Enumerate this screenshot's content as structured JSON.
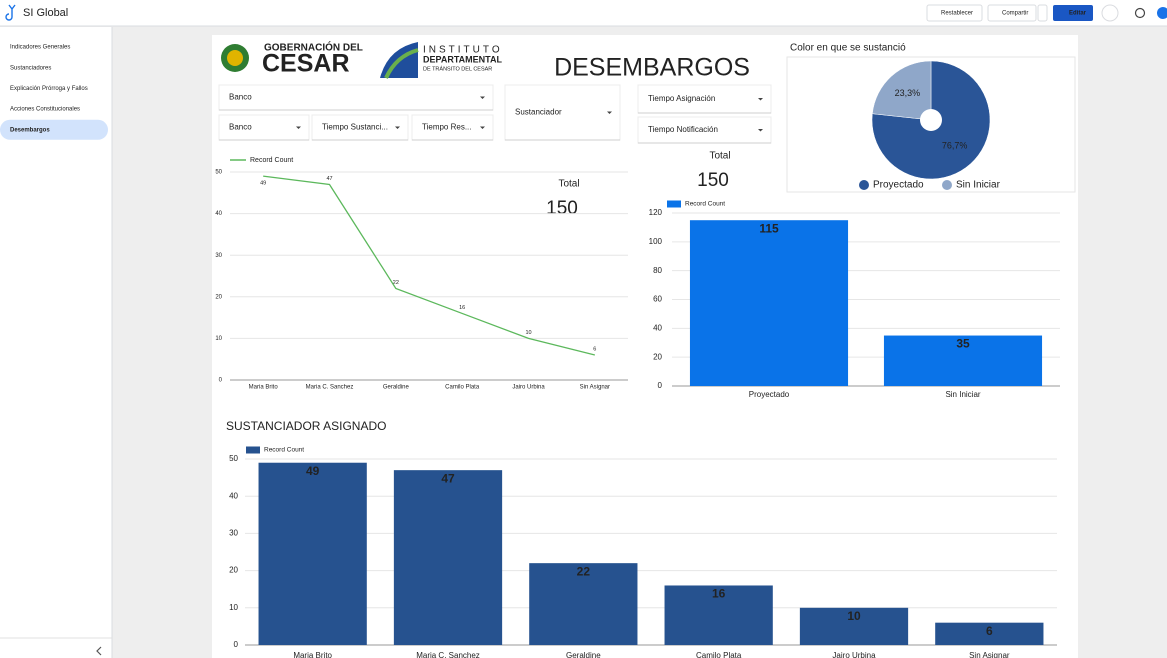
{
  "header": {
    "app_title": "SI Global",
    "buttons": [
      "Restablecer",
      "Compartir",
      "Editar"
    ]
  },
  "sidebar": {
    "items": [
      "Indicadores Generales",
      "Sustanciadores",
      "Explicación Prórroga y Fallos",
      "Acciones Constitucionales",
      "Desembargos"
    ],
    "active": 4
  },
  "logos": {
    "gobernacion": [
      "GOBERNACIÓN DEL",
      "CESAR"
    ],
    "instituto": [
      "INSTITUTO",
      "DEPARTAMENTAL",
      "DE TRÁNSITO DEL CESAR"
    ]
  },
  "report_title": "DESEMBARGOS",
  "filters": [
    "Banco",
    "Sustanciador",
    "Tiempo Asignación",
    "Banco",
    "Tiempo Sustanci...",
    "Tiempo Res...",
    "Tiempo Notificación"
  ],
  "scorecards": [
    {
      "label": "Total",
      "value": 150
    },
    {
      "label": "Total",
      "value": 150
    }
  ],
  "chart_data": [
    {
      "type": "line",
      "categories": [
        "Maria Brito",
        "Maria C. Sanchez",
        "Geraldine",
        "Camilo Plata",
        "Jairo Urbina",
        "Sin Asignar"
      ],
      "series": [
        {
          "name": "Record Count",
          "color": "#5cb85c",
          "values": [
            49,
            47,
            22,
            16,
            10,
            6
          ]
        }
      ],
      "ylim": [
        0,
        50
      ],
      "yticks": [
        0,
        10,
        20,
        30,
        40,
        50
      ],
      "grid": true
    },
    {
      "type": "bar",
      "categories": [
        "Proyectado",
        "Sin Iniciar"
      ],
      "series": [
        {
          "name": "Record Count",
          "color": "#0a73e8",
          "values": [
            115,
            35
          ]
        }
      ],
      "ylim": [
        0,
        120
      ],
      "yticks": [
        0,
        20,
        40,
        60,
        80,
        100,
        120
      ],
      "grid": true
    },
    {
      "type": "pie",
      "title": "Color en que se sustanció",
      "categories": [
        "Proyectado",
        "Sin Iniciar"
      ],
      "values": [
        76.7,
        23.3
      ],
      "value_labels": [
        "76,7%",
        "23,3%"
      ],
      "colors": [
        "#2a5597",
        "#8fa7c9"
      ]
    },
    {
      "type": "bar",
      "title": "SUSTANCIADOR ASIGNADO",
      "categories": [
        "Maria Brito",
        "Maria C. Sanchez",
        "Geraldine",
        "Camilo Plata",
        "Jairo Urbina",
        "Sin Asignar"
      ],
      "series": [
        {
          "name": "Record Count",
          "color": "#26528f",
          "values": [
            49,
            47,
            22,
            16,
            10,
            6
          ]
        }
      ],
      "ylim": [
        0,
        50
      ],
      "yticks": [
        0,
        10,
        20,
        30,
        40,
        50
      ],
      "grid": true
    }
  ]
}
